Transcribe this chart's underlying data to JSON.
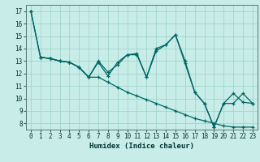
{
  "xlabel": "Humidex (Indice chaleur)",
  "xlim": [
    -0.5,
    23.5
  ],
  "ylim": [
    7.5,
    17.5
  ],
  "yticks": [
    8,
    9,
    10,
    11,
    12,
    13,
    14,
    15,
    16,
    17
  ],
  "xticks": [
    0,
    1,
    2,
    3,
    4,
    5,
    6,
    7,
    8,
    9,
    10,
    11,
    12,
    13,
    14,
    15,
    16,
    17,
    18,
    19,
    20,
    21,
    22,
    23
  ],
  "background_color": "#c8ede8",
  "grid_color": "#a0d4cc",
  "line_color": "#006666",
  "lines": [
    {
      "x": [
        0,
        1,
        2,
        3,
        4,
        5,
        6,
        7,
        8,
        9,
        10,
        11,
        12,
        13,
        14,
        15,
        16,
        17,
        18,
        19,
        20,
        21,
        22,
        23
      ],
      "y": [
        17,
        13.3,
        13.2,
        13.0,
        12.9,
        12.5,
        11.7,
        12.9,
        11.8,
        12.9,
        13.5,
        13.6,
        11.7,
        14.0,
        14.3,
        15.1,
        12.8,
        10.5,
        9.6,
        7.7,
        9.6,
        10.4,
        9.7,
        9.6
      ]
    },
    {
      "x": [
        0,
        1,
        2,
        3,
        4,
        5,
        6,
        7,
        8,
        9,
        10,
        11,
        12,
        13,
        14,
        15,
        16,
        17,
        18,
        19,
        20,
        21,
        22,
        23
      ],
      "y": [
        17,
        13.3,
        13.2,
        13.0,
        12.9,
        12.5,
        11.7,
        11.7,
        11.3,
        10.9,
        10.5,
        10.2,
        9.9,
        9.6,
        9.3,
        9.0,
        8.7,
        8.4,
        8.2,
        8.0,
        7.8,
        7.7,
        7.7,
        7.7
      ]
    },
    {
      "x": [
        1,
        2,
        3,
        4,
        5,
        6,
        7,
        8,
        9,
        10,
        11,
        12,
        13,
        14,
        15,
        16,
        17,
        18,
        19,
        20,
        21,
        22,
        23
      ],
      "y": [
        13.3,
        13.2,
        13.0,
        12.9,
        12.5,
        11.7,
        13.0,
        12.1,
        12.7,
        13.5,
        13.5,
        11.7,
        13.8,
        14.3,
        15.1,
        13.0,
        10.5,
        9.6,
        7.7,
        9.6,
        9.6,
        10.4,
        9.6
      ]
    }
  ]
}
